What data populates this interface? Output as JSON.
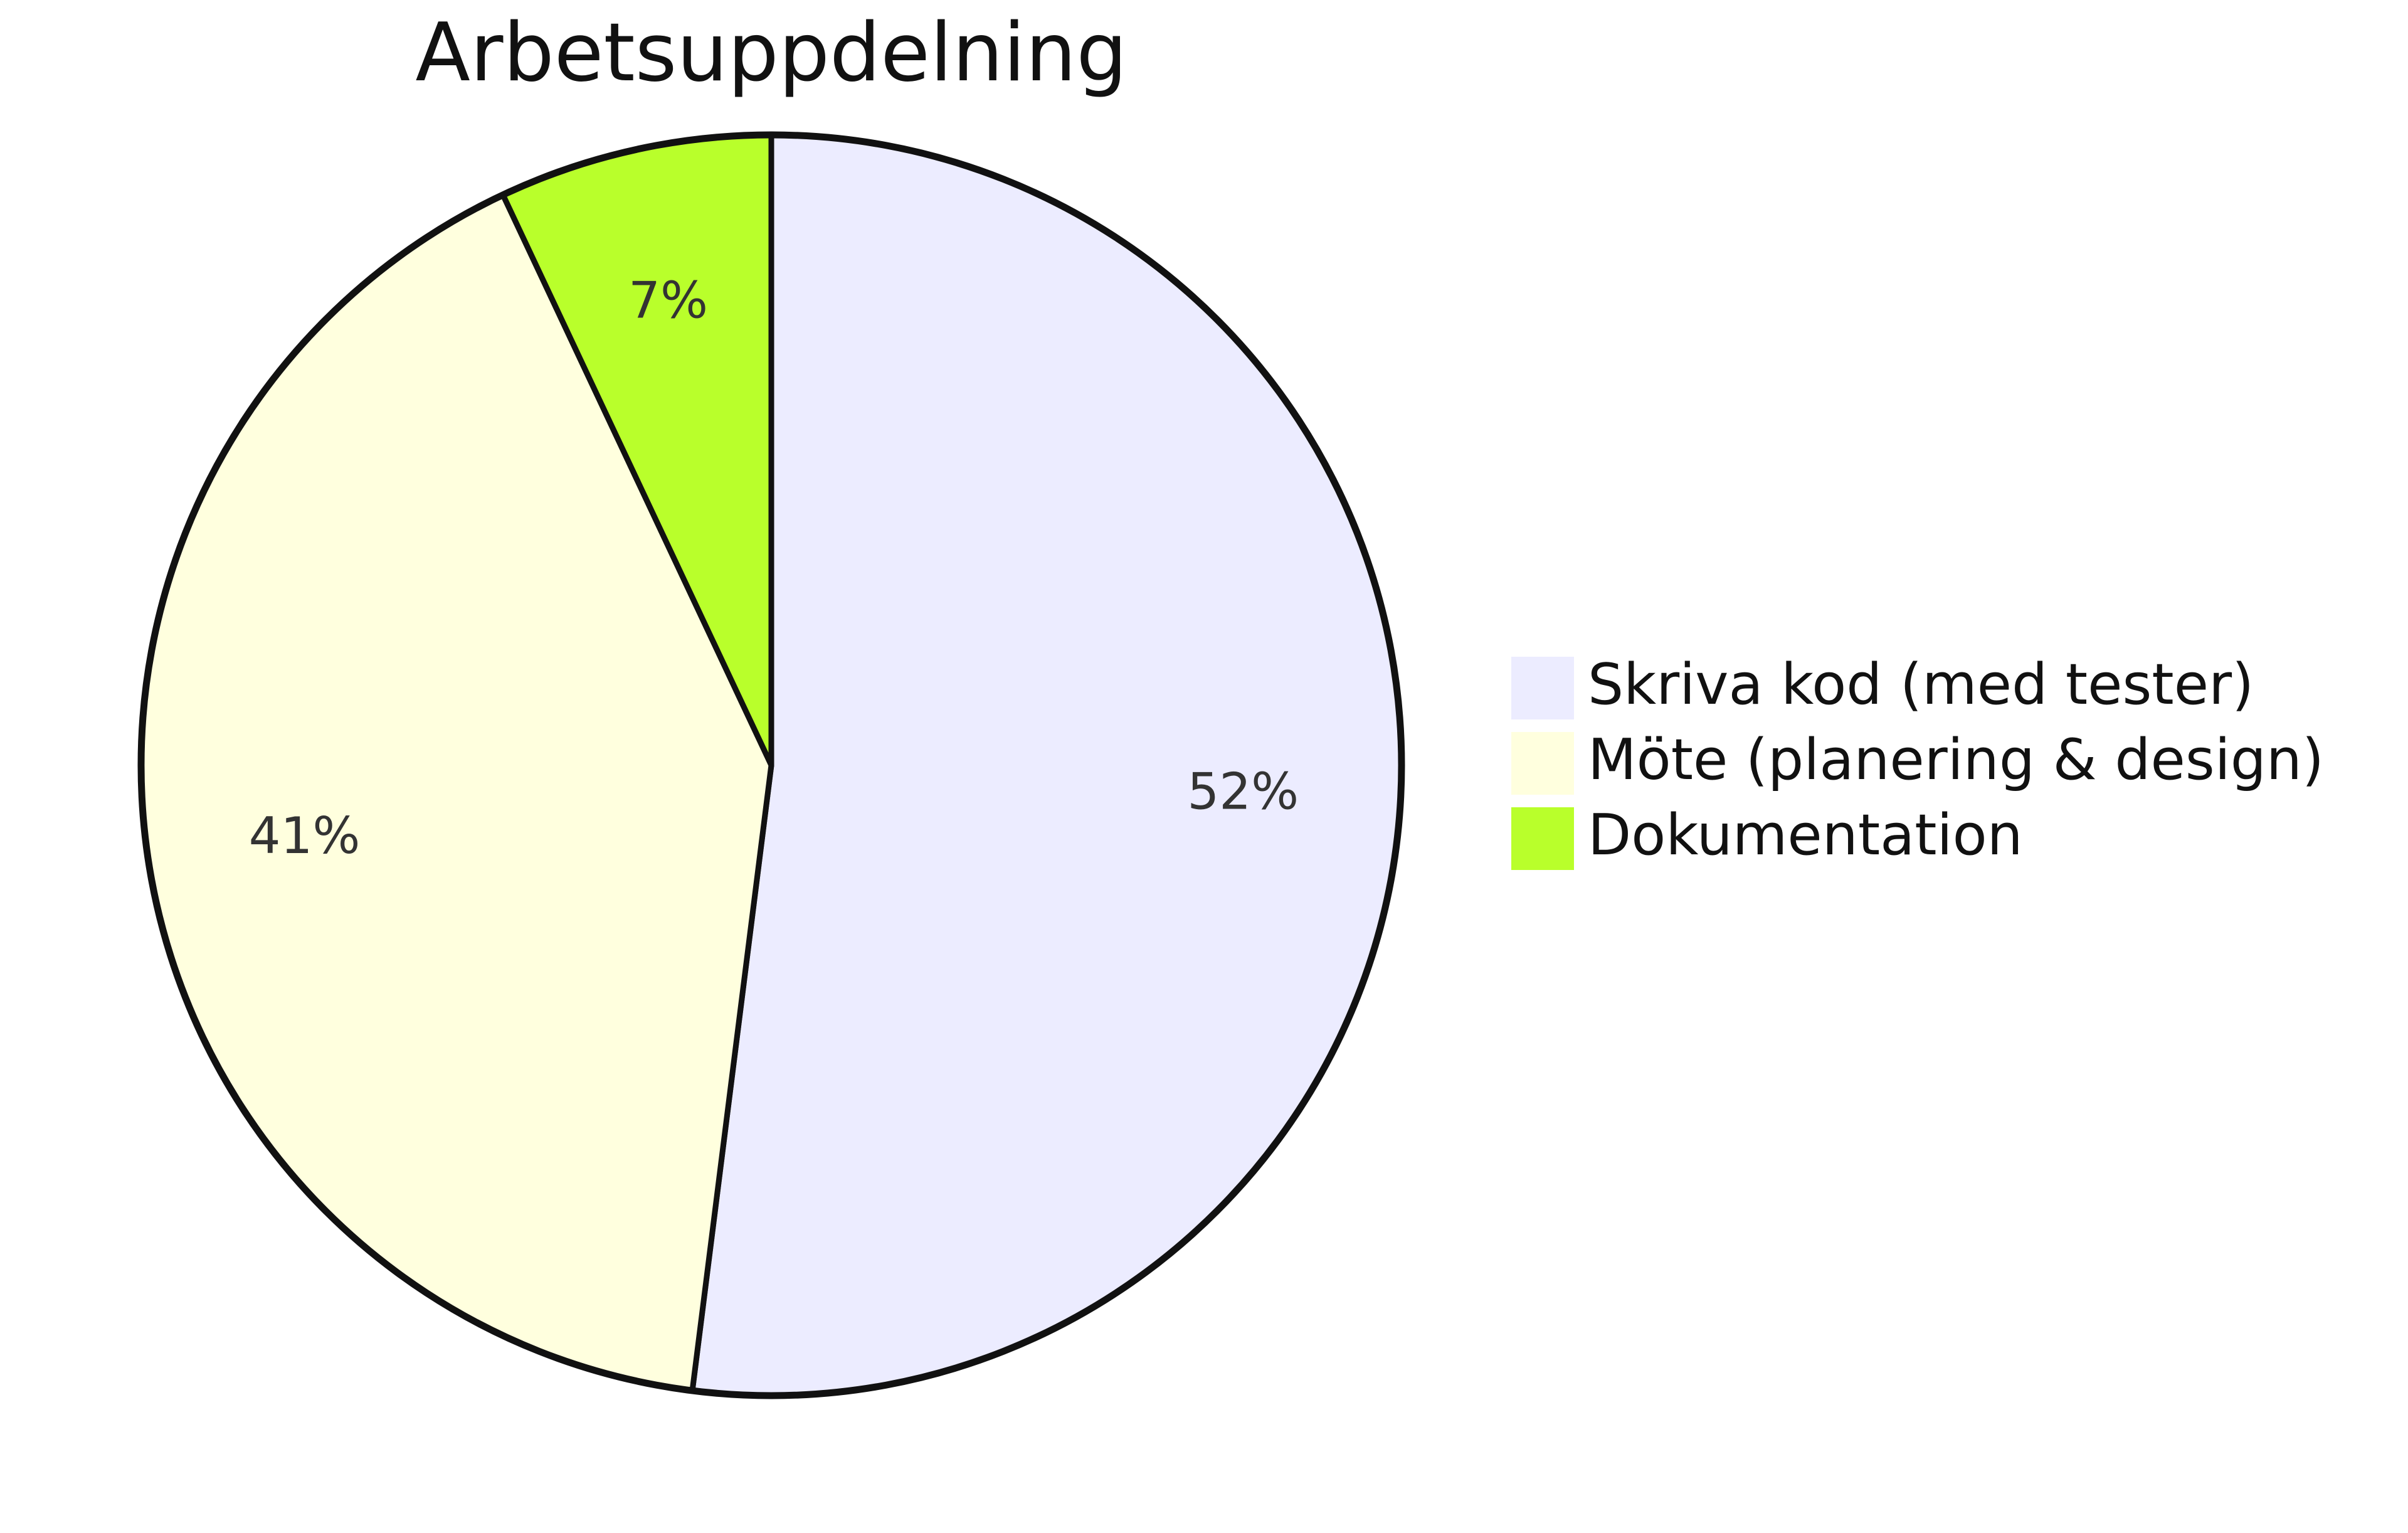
{
  "chart_data": {
    "type": "pie",
    "title": "Arbetsuppdelning",
    "legend_position": "right",
    "slices": [
      {
        "label": "Skriva kod (med tester)",
        "value": 52,
        "display": "52%",
        "color": "#ececff"
      },
      {
        "label": "Möte (planering & design)",
        "value": 41,
        "display": "41%",
        "color": "#ffffde"
      },
      {
        "label": "Dokumentation",
        "value": 7,
        "display": "7%",
        "color": "#b9ff2b"
      }
    ]
  }
}
